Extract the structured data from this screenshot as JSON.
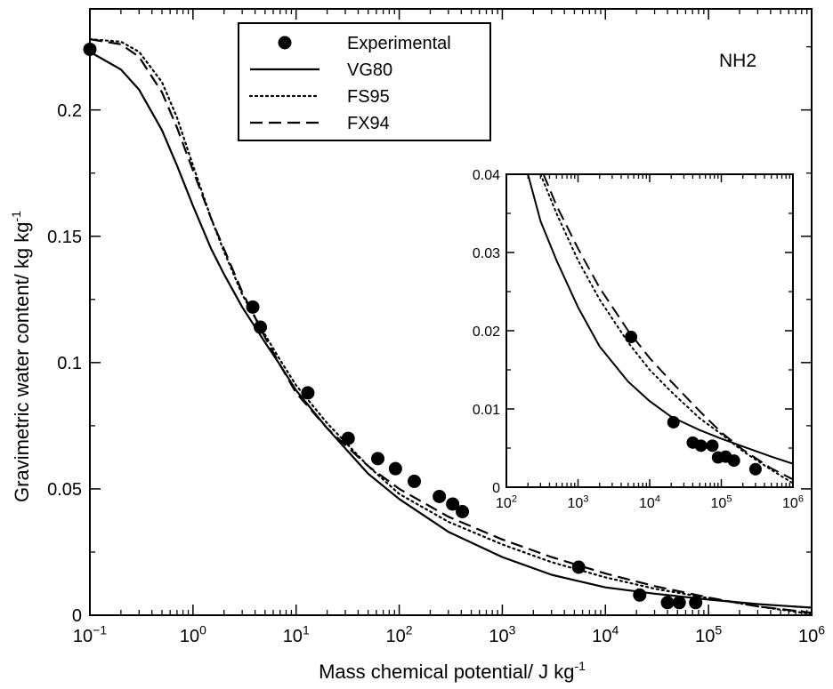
{
  "chart_data": [
    {
      "type": "line",
      "title": "",
      "annotation": "NH2",
      "xlabel": "Mass chemical potential/ J kg",
      "xlabel_sup": "-1",
      "ylabel": "Gravimetric water content/ kg kg",
      "ylabel_sup": "-1",
      "xscale": "log",
      "xlim": [
        0.1,
        1000000
      ],
      "ylim": [
        0,
        0.24
      ],
      "x_ticks": [
        {
          "base": "10",
          "exp": "−1",
          "value": 0.1
        },
        {
          "base": "10",
          "exp": "0",
          "value": 1
        },
        {
          "base": "10",
          "exp": "1",
          "value": 10
        },
        {
          "base": "10",
          "exp": "2",
          "value": 100
        },
        {
          "base": "10",
          "exp": "3",
          "value": 1000
        },
        {
          "base": "10",
          "exp": "4",
          "value": 10000
        },
        {
          "base": "10",
          "exp": "5",
          "value": 100000
        },
        {
          "base": "10",
          "exp": "6",
          "value": 1000000
        }
      ],
      "y_ticks": [
        {
          "label": "0",
          "value": 0
        },
        {
          "label": "0.05",
          "value": 0.05
        },
        {
          "label": "0.1",
          "value": 0.1
        },
        {
          "label": "0.15",
          "value": 0.15
        },
        {
          "label": "0.2",
          "value": 0.2
        }
      ],
      "grid": false,
      "legend_position": "top-center",
      "series": [
        {
          "name": "Experimental",
          "kind": "scatter",
          "color": "#000000",
          "x": [
            0.1,
            3.8,
            4.5,
            13,
            32,
            62,
            92,
            140,
            245,
            330,
            410,
            5500,
            21500,
            40000,
            52000,
            75000
          ],
          "y": [
            0.224,
            0.122,
            0.114,
            0.088,
            0.07,
            0.062,
            0.058,
            0.053,
            0.047,
            0.044,
            0.041,
            0.019,
            0.008,
            0.005,
            0.005,
            0.005
          ]
        },
        {
          "name": "VG80",
          "kind": "line",
          "style": "solid",
          "color": "#000000",
          "x": [
            0.1,
            0.2,
            0.3,
            0.5,
            0.7,
            1,
            1.5,
            2,
            3,
            5,
            7,
            10,
            20,
            50,
            100,
            300,
            1000,
            3000,
            10000,
            30000,
            100000,
            300000,
            1000000
          ],
          "y": [
            0.223,
            0.216,
            0.208,
            0.192,
            0.178,
            0.162,
            0.145,
            0.135,
            0.122,
            0.108,
            0.099,
            0.089,
            0.074,
            0.056,
            0.046,
            0.033,
            0.023,
            0.016,
            0.011,
            0.0085,
            0.0062,
            0.0044,
            0.003
          ]
        },
        {
          "name": "FS95",
          "kind": "line",
          "style": "dotted",
          "color": "#000000",
          "x": [
            0.1,
            0.2,
            0.3,
            0.5,
            0.7,
            1,
            1.5,
            2,
            3,
            5,
            7,
            10,
            20,
            50,
            100,
            300,
            1000,
            3000,
            10000,
            30000,
            100000,
            300000,
            1000000
          ],
          "y": [
            0.228,
            0.227,
            0.223,
            0.211,
            0.197,
            0.178,
            0.157,
            0.144,
            0.127,
            0.111,
            0.101,
            0.091,
            0.076,
            0.059,
            0.048,
            0.037,
            0.028,
            0.021,
            0.015,
            0.0105,
            0.0068,
            0.0035,
            0.0005
          ]
        },
        {
          "name": "FX94",
          "kind": "line",
          "style": "dashed",
          "color": "#000000",
          "x": [
            0.1,
            0.2,
            0.3,
            0.5,
            0.7,
            1,
            1.5,
            2,
            3,
            5,
            7,
            10,
            20,
            50,
            100,
            300,
            1000,
            3000,
            10000,
            30000,
            100000,
            300000,
            1000000
          ],
          "y": [
            0.228,
            0.226,
            0.221,
            0.207,
            0.193,
            0.176,
            0.157,
            0.145,
            0.128,
            0.11,
            0.099,
            0.088,
            0.074,
            0.059,
            0.05,
            0.039,
            0.03,
            0.023,
            0.0165,
            0.0115,
            0.007,
            0.0035,
            0.001
          ]
        }
      ]
    },
    {
      "type": "line",
      "title": "",
      "inset": true,
      "xscale": "log",
      "xlim": [
        100,
        1000000
      ],
      "ylim": [
        0,
        0.04
      ],
      "x_ticks": [
        {
          "base": "10",
          "exp": "2",
          "value": 100
        },
        {
          "base": "10",
          "exp": "3",
          "value": 1000
        },
        {
          "base": "10",
          "exp": "4",
          "value": 10000
        },
        {
          "base": "10",
          "exp": "5",
          "value": 100000
        },
        {
          "base": "10",
          "exp": "6",
          "value": 1000000
        }
      ],
      "y_ticks": [
        {
          "label": "0",
          "value": 0
        },
        {
          "label": "0.01",
          "value": 0.01
        },
        {
          "label": "0.02",
          "value": 0.02
        },
        {
          "label": "0.03",
          "value": 0.03
        },
        {
          "label": "0.04",
          "value": 0.04
        }
      ],
      "grid": false,
      "series": [
        {
          "name": "Experimental",
          "kind": "scatter",
          "color": "#000000",
          "x": [
            5500,
            21500,
            40000,
            52000,
            75000,
            90000,
            115000,
            150000,
            300000
          ],
          "y": [
            0.0192,
            0.0083,
            0.0057,
            0.0053,
            0.0053,
            0.0038,
            0.0039,
            0.0034,
            0.0023
          ]
        },
        {
          "name": "VG80",
          "kind": "line",
          "style": "solid",
          "color": "#000000",
          "x": [
            200,
            300,
            500,
            1000,
            2000,
            5000,
            10000,
            20000,
            50000,
            100000,
            200000,
            500000,
            1000000
          ],
          "y": [
            0.04,
            0.034,
            0.029,
            0.023,
            0.018,
            0.0135,
            0.011,
            0.009,
            0.0073,
            0.0062,
            0.0052,
            0.0039,
            0.003
          ]
        },
        {
          "name": "FS95",
          "kind": "line",
          "style": "dotted",
          "color": "#000000",
          "x": [
            300,
            500,
            1000,
            2000,
            5000,
            10000,
            20000,
            50000,
            100000,
            200000,
            500000,
            1000000
          ],
          "y": [
            0.04,
            0.035,
            0.029,
            0.024,
            0.0185,
            0.015,
            0.0122,
            0.0088,
            0.0068,
            0.0046,
            0.0022,
            0.0005
          ]
        },
        {
          "name": "FX94",
          "kind": "line",
          "style": "dashed",
          "color": "#000000",
          "x": [
            330,
            500,
            1000,
            2000,
            5000,
            10000,
            20000,
            50000,
            100000,
            200000,
            500000,
            1000000
          ],
          "y": [
            0.04,
            0.036,
            0.0305,
            0.0255,
            0.02,
            0.0165,
            0.0135,
            0.0097,
            0.007,
            0.0048,
            0.0024,
            0.001
          ]
        }
      ]
    }
  ]
}
